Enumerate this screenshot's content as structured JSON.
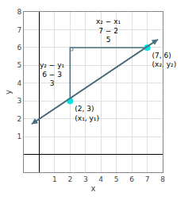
{
  "chart_data": {
    "type": "line",
    "xlabel": "x",
    "ylabel": "y",
    "xlim": [
      -1,
      8
    ],
    "ylim": [
      -1,
      8
    ],
    "xticks": [
      1,
      2,
      3,
      4,
      5,
      6,
      7,
      8
    ],
    "yticks": [
      1,
      2,
      3,
      4,
      5,
      6,
      7,
      8
    ],
    "grid": true,
    "series": [
      {
        "type": "line",
        "color": "#4a6e7e",
        "line_style": "double_arrow",
        "x": [
          -0.5,
          7.7
        ],
        "values": [
          1.7,
          6.46
        ]
      },
      {
        "type": "line",
        "color": "#4a6e7e",
        "line_style": "solid",
        "x": [
          2,
          2,
          7
        ],
        "values": [
          3,
          6,
          6
        ]
      },
      {
        "type": "scatter",
        "color": "#00e5e5",
        "marker": "circle",
        "x": [
          2,
          7
        ],
        "values": [
          3,
          6
        ],
        "value_labels": [
          "(2, 3)\n(x₁, y₁)",
          "(7, 6)\n(x₂, y₂)"
        ]
      }
    ],
    "annotations": [
      {
        "text": "y₂ − y₁\n6 − 3\n3",
        "x": 2,
        "y": 4.5
      },
      {
        "text": "x₂ − x₁\n7 − 2\n5",
        "x": 4.5,
        "y": 6
      }
    ]
  }
}
